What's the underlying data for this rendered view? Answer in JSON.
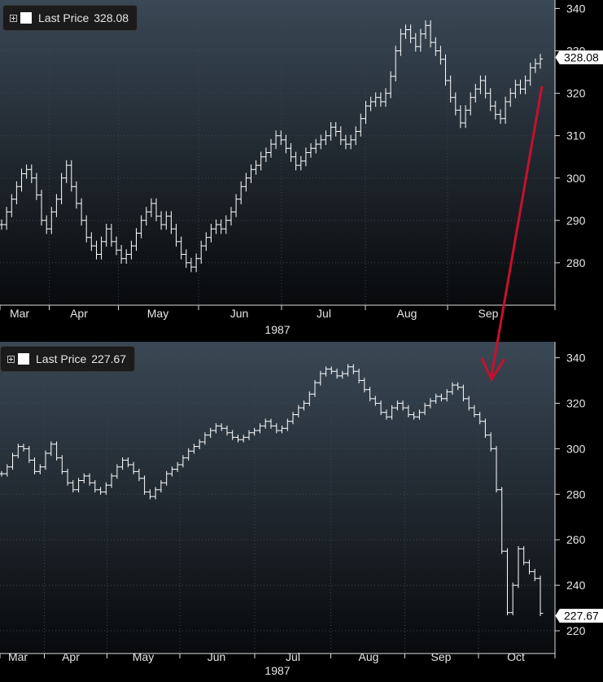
{
  "colors": {
    "line": "#ffffff",
    "arrow": "#c8102e",
    "grid": "#3d4650",
    "text": "#e6e6e6"
  },
  "chart_data": [
    {
      "type": "line",
      "style": "ohlc-bars",
      "legend": {
        "label": "Last Price",
        "value": "328.08"
      },
      "last_value_label": "328.08",
      "y_axis": {
        "ticks": [
          280,
          290,
          300,
          310,
          320,
          330,
          340
        ],
        "range": [
          270,
          342
        ],
        "side": "right"
      },
      "x_axis": {
        "months": [
          "Mar",
          "Apr",
          "May",
          "Jun",
          "Jul",
          "Aug",
          "Sep"
        ],
        "year_label": "1987"
      },
      "grid": true,
      "series": [
        {
          "values": [
            289,
            292,
            295,
            298,
            301,
            302,
            300,
            296,
            290,
            288,
            292,
            295,
            300,
            303,
            298,
            294,
            290,
            286,
            284,
            282,
            285,
            288,
            285,
            283,
            281,
            282,
            284,
            287,
            290,
            292,
            294,
            291,
            289,
            291,
            288,
            285,
            282,
            280,
            279,
            281,
            284,
            286,
            288,
            289,
            288,
            290,
            292,
            295,
            298,
            300,
            302,
            303,
            305,
            306,
            308,
            310,
            309,
            307,
            305,
            303,
            304,
            306,
            307,
            308,
            309,
            310,
            312,
            311,
            309,
            308,
            309,
            311,
            314,
            317,
            318,
            319,
            318,
            320,
            324,
            330,
            334,
            335,
            333,
            331,
            334,
            336,
            332,
            330,
            328,
            323,
            319,
            316,
            313,
            316,
            319,
            321,
            323,
            320,
            317,
            315,
            314,
            318,
            320,
            322,
            321,
            323,
            326,
            327,
            328.08
          ],
          "dates": "1987-02-26 to 1987-09-30 (trading days)"
        }
      ]
    },
    {
      "type": "line",
      "style": "ohlc-bars",
      "legend": {
        "label": "Last Price",
        "value": "227.67"
      },
      "last_value_label": "227.67",
      "y_axis": {
        "ticks": [
          220,
          240,
          260,
          280,
          300,
          320,
          340
        ],
        "range": [
          210,
          347
        ],
        "side": "right"
      },
      "x_axis": {
        "months": [
          "Mar",
          "Apr",
          "May",
          "Jun",
          "Jul",
          "Aug",
          "Sep",
          "Oct"
        ],
        "year_label": "1987"
      },
      "grid": true,
      "series": [
        {
          "values": [
            289,
            292,
            297,
            301,
            300,
            295,
            290,
            292,
            298,
            302,
            296,
            290,
            285,
            282,
            286,
            288,
            285,
            282,
            281,
            284,
            288,
            292,
            295,
            293,
            290,
            287,
            281,
            279,
            282,
            285,
            289,
            291,
            293,
            296,
            299,
            301,
            303,
            306,
            308,
            310,
            309,
            307,
            305,
            304,
            305,
            307,
            308,
            310,
            312,
            310,
            308,
            309,
            312,
            315,
            318,
            320,
            324,
            329,
            333,
            335,
            334,
            332,
            333,
            336,
            334,
            330,
            326,
            322,
            320,
            316,
            314,
            318,
            320,
            318,
            315,
            314,
            316,
            319,
            321,
            323,
            322,
            325,
            328,
            327,
            322,
            318,
            315,
            312,
            306,
            300,
            282,
            255,
            228,
            240,
            256,
            250,
            246,
            243,
            227.67
          ],
          "dates": "1987-02-26 to 1987-10-30 (trading days)"
        }
      ]
    }
  ]
}
